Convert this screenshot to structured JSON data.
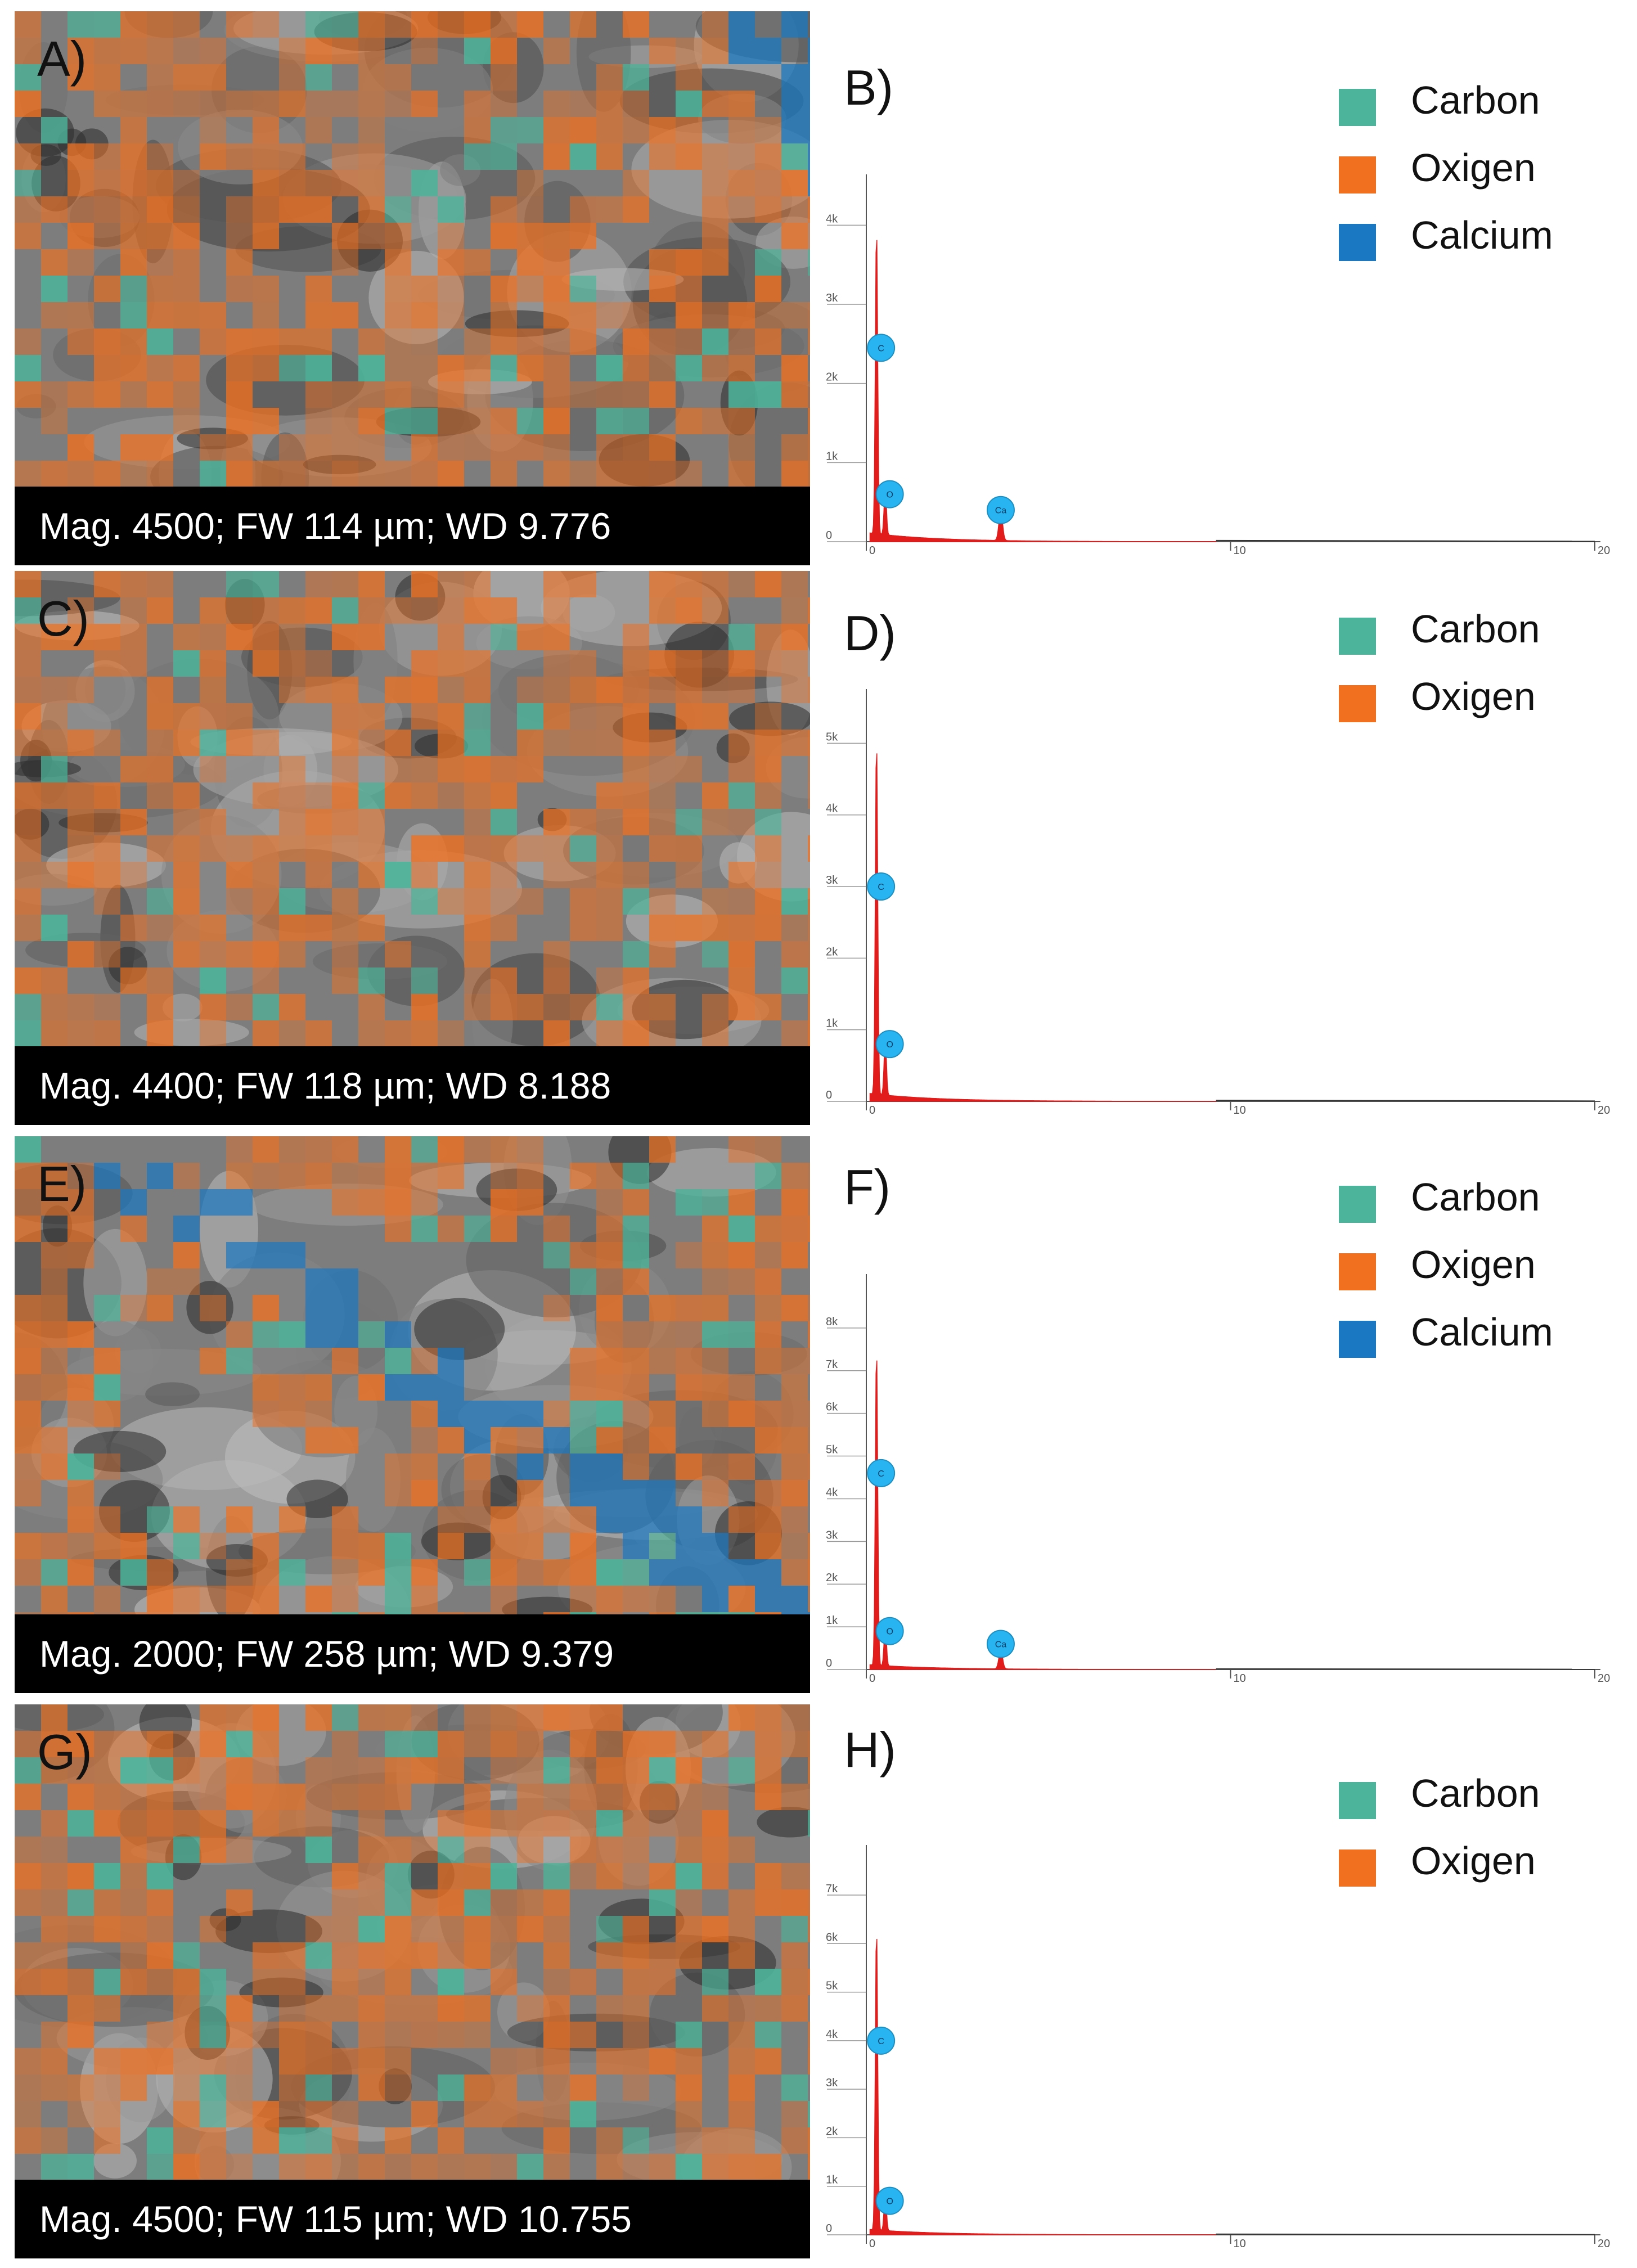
{
  "colors": {
    "carbon": "#4cb49a",
    "oxygen": "#f07020",
    "calcium": "#1a78c2",
    "spectrum_line": "#e21b1b",
    "peak_marker": "#28b4f0"
  },
  "rows": [
    {
      "sem": {
        "letter": "A)",
        "caption": "Mag. 4500; FW 114 µm; WD 9.776"
      },
      "spectrum": {
        "letter": "B)"
      },
      "legend": [
        {
          "label": "Carbon",
          "color": "#4cb49a"
        },
        {
          "label": "Oxigen",
          "color": "#f07020"
        },
        {
          "label": "Calcium",
          "color": "#1a78c2"
        }
      ]
    },
    {
      "sem": {
        "letter": "C)",
        "caption": "Mag. 4400; FW 118 µm; WD 8.188"
      },
      "spectrum": {
        "letter": "D)"
      },
      "legend": [
        {
          "label": "Carbon",
          "color": "#4cb49a"
        },
        {
          "label": "Oxigen",
          "color": "#f07020"
        }
      ]
    },
    {
      "sem": {
        "letter": "E)",
        "caption": "Mag. 2000; FW 258 µm; WD 9.379"
      },
      "spectrum": {
        "letter": "F)"
      },
      "legend": [
        {
          "label": "Carbon",
          "color": "#4cb49a"
        },
        {
          "label": "Oxigen",
          "color": "#f07020"
        },
        {
          "label": "Calcium",
          "color": "#1a78c2"
        }
      ]
    },
    {
      "sem": {
        "letter": "G)",
        "caption": "Mag. 4500; FW 115 µm; WD 10.755"
      },
      "spectrum": {
        "letter": "H)"
      },
      "legend": [
        {
          "label": "Carbon",
          "color": "#4cb49a"
        },
        {
          "label": "Oxigen",
          "color": "#f07020"
        }
      ]
    }
  ],
  "chart_data": [
    {
      "type": "line",
      "xlim": [
        0,
        20
      ],
      "x_ticks": [
        0,
        10,
        20
      ],
      "ylim": [
        0,
        4500
      ],
      "y_ticks": [
        0,
        1000,
        2000,
        3000,
        4000
      ],
      "y_tick_labels": [
        "0",
        "1k",
        "2k",
        "3k",
        "4k"
      ],
      "peaks": [
        {
          "x": 0.28,
          "y": 3900
        },
        {
          "x": 0.52,
          "y": 600
        },
        {
          "x": 3.69,
          "y": 380
        }
      ],
      "markers": [
        {
          "label": "C",
          "x": 0.28,
          "y": 2450
        },
        {
          "label": "O",
          "x": 0.52,
          "y": 600
        },
        {
          "label": "Ca",
          "x": 3.69,
          "y": 400
        }
      ]
    },
    {
      "type": "line",
      "xlim": [
        0,
        20
      ],
      "x_ticks": [
        0,
        10,
        20
      ],
      "ylim": [
        0,
        5600
      ],
      "y_ticks": [
        0,
        1000,
        2000,
        3000,
        4000,
        5000
      ],
      "y_tick_labels": [
        "0",
        "1k",
        "2k",
        "3k",
        "4k",
        "5k"
      ],
      "peaks": [
        {
          "x": 0.28,
          "y": 5000
        },
        {
          "x": 0.52,
          "y": 800
        }
      ],
      "markers": [
        {
          "label": "C",
          "x": 0.28,
          "y": 3000
        },
        {
          "label": "O",
          "x": 0.52,
          "y": 800
        }
      ]
    },
    {
      "type": "line",
      "xlim": [
        0,
        20
      ],
      "x_ticks": [
        0,
        10,
        20
      ],
      "ylim": [
        0,
        9000
      ],
      "y_ticks": [
        0,
        1000,
        2000,
        3000,
        4000,
        5000,
        6000,
        7000,
        8000
      ],
      "y_tick_labels": [
        "0",
        "1k",
        "2k",
        "3k",
        "4k",
        "5k",
        "6k",
        "7k",
        "8k"
      ],
      "peaks": [
        {
          "x": 0.28,
          "y": 7500
        },
        {
          "x": 0.52,
          "y": 1000
        },
        {
          "x": 3.69,
          "y": 450
        }
      ],
      "markers": [
        {
          "label": "C",
          "x": 0.28,
          "y": 4600
        },
        {
          "label": "O",
          "x": 0.52,
          "y": 900
        },
        {
          "label": "Ca",
          "x": 3.69,
          "y": 600
        }
      ]
    },
    {
      "type": "line",
      "xlim": [
        0,
        20
      ],
      "x_ticks": [
        0,
        10,
        20
      ],
      "ylim": [
        0,
        7800
      ],
      "y_ticks": [
        0,
        1000,
        2000,
        3000,
        4000,
        5000,
        6000,
        7000
      ],
      "y_tick_labels": [
        "0",
        "1k",
        "2k",
        "3k",
        "4k",
        "5k",
        "6k",
        "7k"
      ],
      "peaks": [
        {
          "x": 0.28,
          "y": 6300
        },
        {
          "x": 0.52,
          "y": 800
        }
      ],
      "markers": [
        {
          "label": "C",
          "x": 0.28,
          "y": 4000
        },
        {
          "label": "O",
          "x": 0.52,
          "y": 700
        }
      ]
    }
  ]
}
